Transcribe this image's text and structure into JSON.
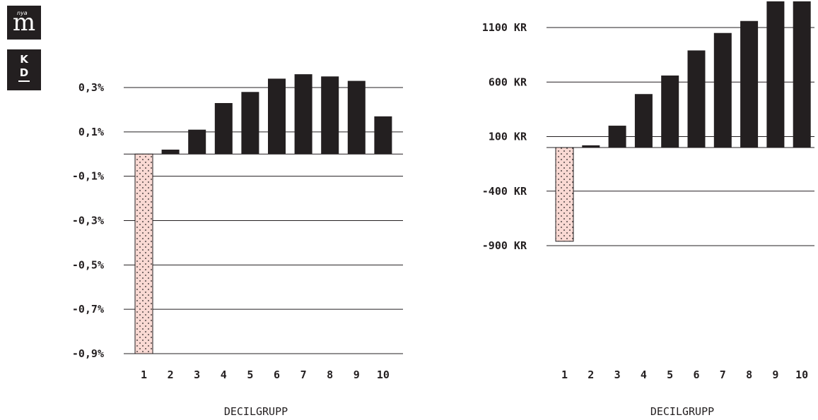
{
  "logos": {
    "m_letter": "m",
    "m_small": "nya",
    "kd_top": "K",
    "kd_bottom": "D"
  },
  "colors": {
    "bar": "#231f20",
    "negative_fill": "#f9d9d3",
    "negative_dots": "#231f20",
    "grid": "#231f20"
  },
  "chart_data": [
    {
      "type": "bar",
      "title": "",
      "xlabel": "DECILGRUPP",
      "ylabel": "",
      "categories": [
        "1",
        "2",
        "3",
        "4",
        "5",
        "6",
        "7",
        "8",
        "9",
        "10"
      ],
      "values": [
        -0.9,
        0.02,
        0.11,
        0.23,
        0.28,
        0.34,
        0.36,
        0.35,
        0.33,
        0.17
      ],
      "ylim": [
        -0.9,
        0.4
      ],
      "ticks": [
        0.3,
        0.1,
        -0.1,
        -0.3,
        -0.5,
        -0.7,
        -0.9
      ],
      "tick_labels": [
        "0,3%",
        "0,1%",
        "-0,1%",
        "-0,3%",
        "-0,5%",
        "-0,7%",
        "-0,9%"
      ],
      "grid": true,
      "legend": "none"
    },
    {
      "type": "bar",
      "title": "",
      "xlabel": "DECILGRUPP",
      "ylabel": "",
      "categories": [
        "1",
        "2",
        "3",
        "4",
        "5",
        "6",
        "7",
        "8",
        "9",
        "10"
      ],
      "values": [
        -860,
        20,
        200,
        490,
        660,
        890,
        1050,
        1160,
        1340,
        1340
      ],
      "ylim": [
        -900,
        1350
      ],
      "ticks": [
        1100,
        600,
        100,
        -400,
        -900
      ],
      "tick_labels": [
        "1100 KR",
        "600 KR",
        "100 KR",
        "-400 KR",
        "-900 KR"
      ],
      "grid": true,
      "legend": "none"
    }
  ]
}
